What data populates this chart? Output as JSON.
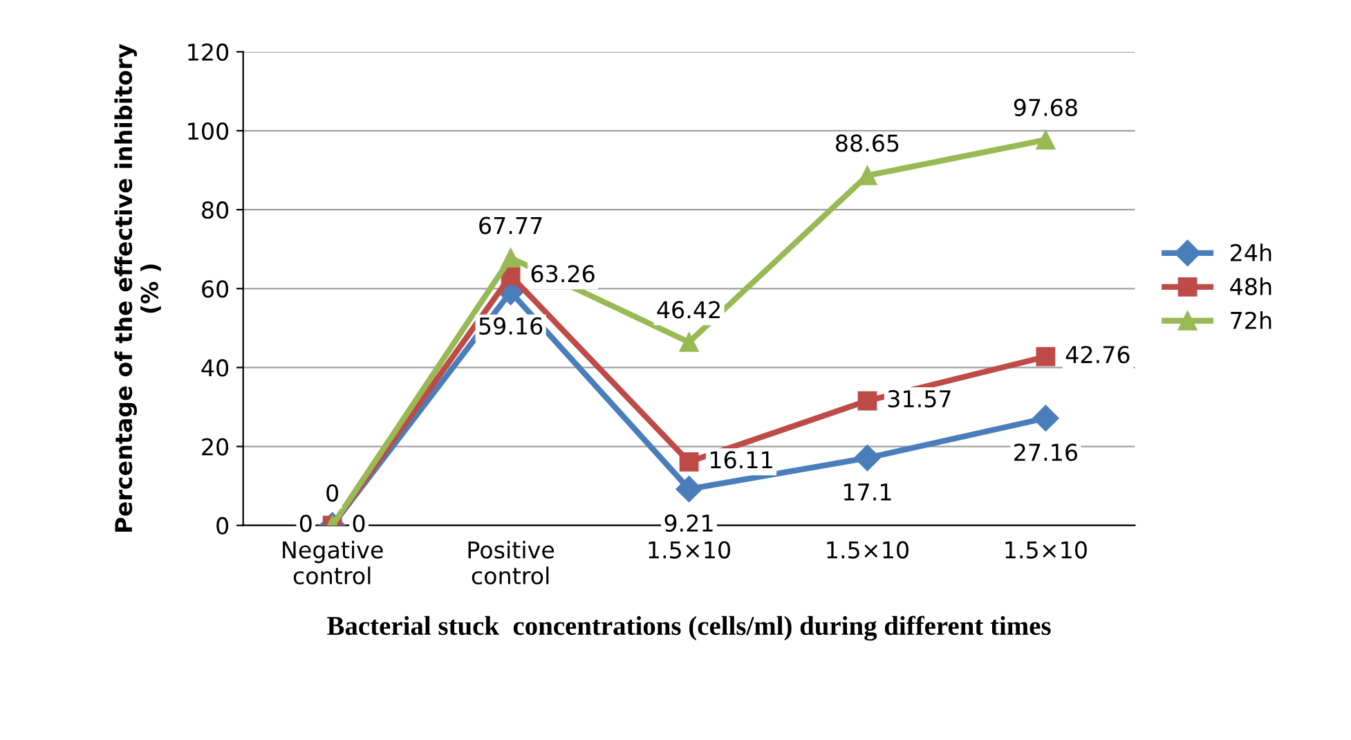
{
  "chart_data": {
    "type": "line",
    "categories": [
      "Negative\ncontrol",
      "Positive\ncontrol",
      "1.5×10",
      "1.5×10",
      "1.5×10"
    ],
    "xlabel": "Bacterial stuck  concentrations (cells/ml) during different times",
    "ylabel": "Percentage of the effective inhibitory\n(% )",
    "ylim": [
      0,
      120
    ],
    "yticks": [
      0,
      20,
      40,
      60,
      80,
      100,
      120
    ],
    "grid": "y",
    "legend": "right",
    "data_labels": true,
    "series": [
      {
        "name": "24h",
        "color": "#4a7ebb",
        "marker": "diamond",
        "values": [
          0,
          59.16,
          9.21,
          17.1,
          27.16
        ]
      },
      {
        "name": "48h",
        "color": "#be4b48",
        "marker": "square",
        "values": [
          0,
          63.26,
          16.11,
          31.57,
          42.76
        ]
      },
      {
        "name": "72h",
        "color": "#98b954",
        "marker": "triangle",
        "values": [
          0,
          67.77,
          46.42,
          88.65,
          97.68
        ]
      }
    ]
  }
}
